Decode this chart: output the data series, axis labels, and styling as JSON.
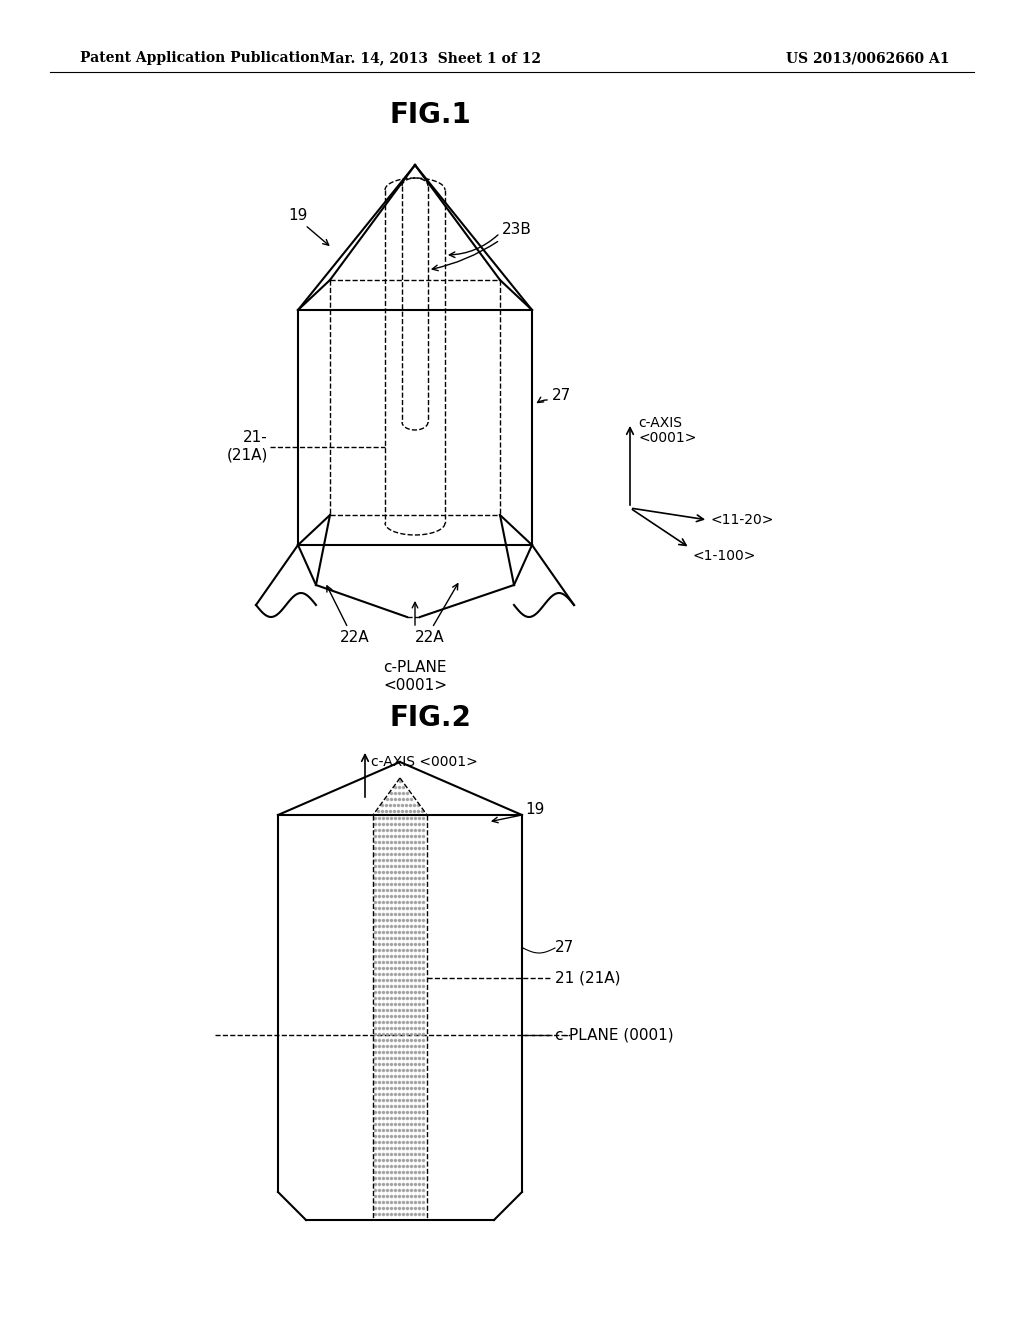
{
  "bg_color": "#ffffff",
  "header_left": "Patent Application Publication",
  "header_mid": "Mar. 14, 2013  Sheet 1 of 12",
  "header_right": "US 2013/0062660 A1",
  "fig1_title": "FIG.1",
  "fig2_title": "FIG.2",
  "label_19_fig1": "19",
  "label_23B": "23B",
  "label_27_fig1": "27",
  "label_21_line1": "21-",
  "label_21_line2": "(21A)",
  "label_22A": "22A",
  "label_cplane": "c-PLANE",
  "label_cplane2": "<0001>",
  "label_caxis_line1": "c-AXIS",
  "label_caxis_line2": "<0001>",
  "label_1120": "<11-20>",
  "label_1100": "<1-100>",
  "label_19_fig2": "19",
  "label_27_fig2": "27",
  "label_21_fig2": "21 (21A)",
  "label_cplane_fig2": "c-PLANE (0001)",
  "label_caxis_fig2": "c-AXIS <0001>"
}
